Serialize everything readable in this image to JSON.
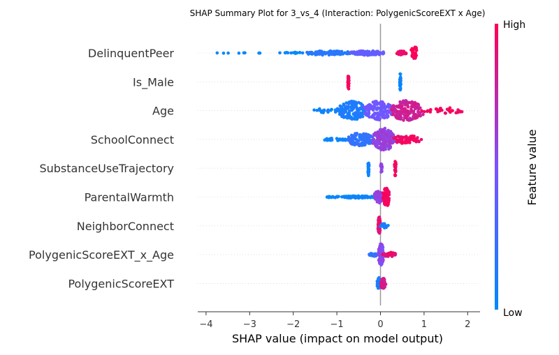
{
  "chart_data": {
    "type": "scatter",
    "subtype": "shap-beeswarm",
    "title": "SHAP Summary Plot for 3_vs_4 (Interaction: PolygenicScoreEXT x Age)",
    "xlabel": "SHAP value (impact on model output)",
    "xlim": [
      -4.2,
      2.1
    ],
    "xticks": [
      -4,
      -3,
      -2,
      -1,
      0,
      1,
      2
    ],
    "xtick_labels": [
      "−4",
      "−3",
      "−2",
      "−1",
      "0",
      "1",
      "2"
    ],
    "colorbar": {
      "label": "Feature value",
      "high": "High",
      "low": "Low",
      "low_color": "#008afb",
      "high_color": "#ff0052"
    },
    "features": [
      {
        "name": "DelinquentPeer",
        "shap_min": -3.95,
        "shap_max": 0.85,
        "clusters": [
          {
            "from": -3.95,
            "to": -2.6,
            "count": 8,
            "spread": 0.02,
            "color": 0.0
          },
          {
            "from": -2.35,
            "to": -1.7,
            "count": 14,
            "spread": 0.08,
            "color": 0.02
          },
          {
            "from": -1.8,
            "to": -0.6,
            "count": 90,
            "spread": 0.18,
            "color": 0.15
          },
          {
            "from": -0.7,
            "to": 0.1,
            "count": 90,
            "spread": 0.2,
            "color": 0.4
          },
          {
            "from": 0.35,
            "to": 0.6,
            "count": 30,
            "spread": 0.18,
            "color": 0.92
          },
          {
            "from": 0.7,
            "to": 0.85,
            "count": 30,
            "spread": 0.6,
            "color": 1.0
          }
        ]
      },
      {
        "name": "Is_Male",
        "shap_min": -0.75,
        "shap_max": 0.45,
        "clusters": [
          {
            "from": -0.75,
            "to": -0.72,
            "count": 30,
            "spread": 0.75,
            "color": 0.98
          },
          {
            "from": 0.44,
            "to": 0.47,
            "count": 30,
            "spread": 0.75,
            "color": 0.02
          }
        ]
      },
      {
        "name": "Age",
        "shap_min": -1.5,
        "shap_max": 1.9,
        "clusters": [
          {
            "from": -1.55,
            "to": -0.9,
            "count": 25,
            "spread": 0.2,
            "color": 0.05
          },
          {
            "from": -1.0,
            "to": -0.3,
            "count": 140,
            "spread": 0.8,
            "color": 0.12
          },
          {
            "from": -0.4,
            "to": 0.3,
            "count": 140,
            "spread": 0.8,
            "color": 0.45
          },
          {
            "from": 0.2,
            "to": 1.0,
            "count": 160,
            "spread": 0.85,
            "color": 0.8
          },
          {
            "from": 0.9,
            "to": 1.95,
            "count": 35,
            "spread": 0.25,
            "color": 0.95
          }
        ]
      },
      {
        "name": "SchoolConnect",
        "shap_min": -1.3,
        "shap_max": 0.95,
        "clusters": [
          {
            "from": -1.35,
            "to": -0.7,
            "count": 30,
            "spread": 0.12,
            "color": 0.05
          },
          {
            "from": -0.8,
            "to": -0.15,
            "count": 120,
            "spread": 0.55,
            "color": 0.2
          },
          {
            "from": -0.2,
            "to": 0.35,
            "count": 170,
            "spread": 0.95,
            "color": 0.6
          },
          {
            "from": 0.25,
            "to": 0.95,
            "count": 60,
            "spread": 0.35,
            "color": 0.95
          }
        ]
      },
      {
        "name": "SubstanceUseTrajectory",
        "shap_min": -0.28,
        "shap_max": 0.35,
        "clusters": [
          {
            "from": -0.29,
            "to": -0.26,
            "count": 25,
            "spread": 0.65,
            "color": 0.05
          },
          {
            "from": 0.0,
            "to": 0.04,
            "count": 20,
            "spread": 0.4,
            "color": 0.55
          },
          {
            "from": 0.32,
            "to": 0.36,
            "count": 30,
            "spread": 0.85,
            "color": 0.98
          }
        ]
      },
      {
        "name": "ParentalWarmth",
        "shap_min": -1.3,
        "shap_max": 0.22,
        "clusters": [
          {
            "from": -1.3,
            "to": -0.85,
            "count": 14,
            "spread": 0.06,
            "color": 0.03
          },
          {
            "from": -0.9,
            "to": -0.1,
            "count": 70,
            "spread": 0.1,
            "color": 0.05
          },
          {
            "from": -0.15,
            "to": 0.05,
            "count": 60,
            "spread": 0.55,
            "color": 0.6
          },
          {
            "from": 0.05,
            "to": 0.22,
            "count": 70,
            "spread": 0.8,
            "color": 0.97
          }
        ]
      },
      {
        "name": "NeighborConnect",
        "shap_min": -0.05,
        "shap_max": 0.18,
        "clusters": [
          {
            "from": -0.06,
            "to": 0.0,
            "count": 60,
            "spread": 0.75,
            "color": 0.9
          },
          {
            "from": 0.0,
            "to": 0.18,
            "count": 25,
            "spread": 0.2,
            "color": 0.1
          }
        ]
      },
      {
        "name": "PolygenicScoreEXT_x_Age",
        "shap_min": -0.28,
        "shap_max": 0.38,
        "clusters": [
          {
            "from": -0.28,
            "to": -0.05,
            "count": 20,
            "spread": 0.15,
            "color": 0.2
          },
          {
            "from": -0.05,
            "to": 0.08,
            "count": 120,
            "spread": 0.95,
            "color": 0.55
          },
          {
            "from": 0.05,
            "to": 0.38,
            "count": 25,
            "spread": 0.2,
            "color": 0.92
          }
        ]
      },
      {
        "name": "PolygenicScoreEXT",
        "shap_min": -0.07,
        "shap_max": 0.12,
        "clusters": [
          {
            "from": -0.08,
            "to": 0.0,
            "count": 50,
            "spread": 0.5,
            "color": 0.1
          },
          {
            "from": 0.0,
            "to": 0.12,
            "count": 60,
            "spread": 0.45,
            "color": 0.85
          }
        ]
      }
    ]
  }
}
